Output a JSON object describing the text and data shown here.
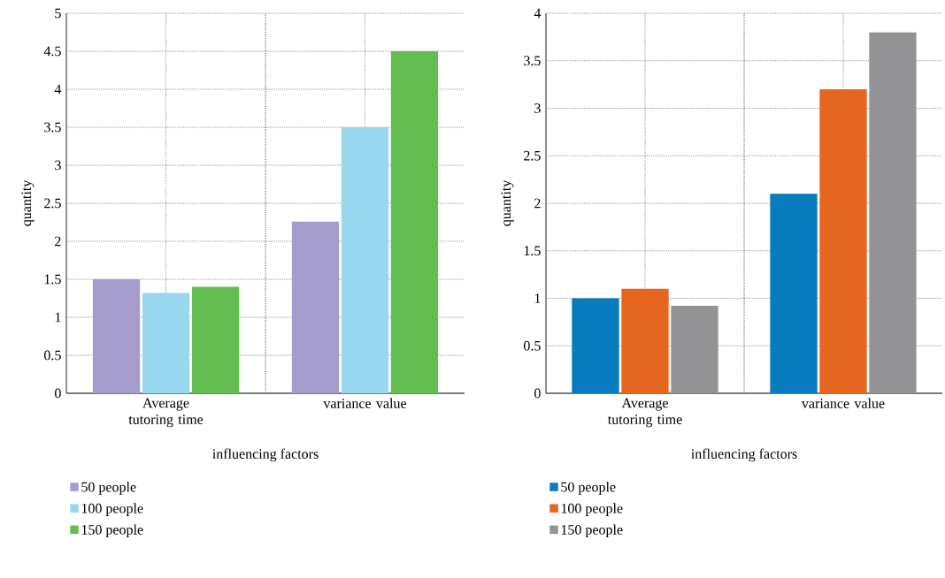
{
  "chart_data": [
    {
      "type": "bar",
      "xlabel": "influencing factors",
      "ylabel": "quantity",
      "categories": [
        "Average tutoring time",
        "variance value"
      ],
      "series": [
        {
          "name": "50 people",
          "color": "#a39ccc",
          "values": [
            1.5,
            2.26
          ]
        },
        {
          "name": "100 people",
          "color": "#97d8ef",
          "values": [
            1.32,
            3.5
          ]
        },
        {
          "name": "150 people",
          "color": "#63bd4f",
          "values": [
            1.4,
            4.5
          ]
        }
      ],
      "ylim": [
        0,
        5
      ],
      "yticks": [
        0,
        0.5,
        1,
        1.5,
        2,
        2.5,
        3,
        3.5,
        4,
        4.5,
        5
      ],
      "grid": true,
      "legend": "bottom left"
    },
    {
      "type": "bar",
      "xlabel": "influencing factors",
      "ylabel": "quantity",
      "categories": [
        "Average tutoring time",
        "variance value"
      ],
      "series": [
        {
          "name": "50 people",
          "color": "#077cbf",
          "values": [
            1.0,
            2.1
          ]
        },
        {
          "name": "100 people",
          "color": "#e7661f",
          "values": [
            1.1,
            3.2
          ]
        },
        {
          "name": "150 people",
          "color": "#939396",
          "values": [
            0.92,
            3.8
          ]
        }
      ],
      "ylim": [
        0,
        4
      ],
      "yticks": [
        0,
        0.5,
        1,
        1.5,
        2,
        2.5,
        3,
        3.5,
        4
      ],
      "grid": true,
      "legend": "bottom left"
    }
  ]
}
